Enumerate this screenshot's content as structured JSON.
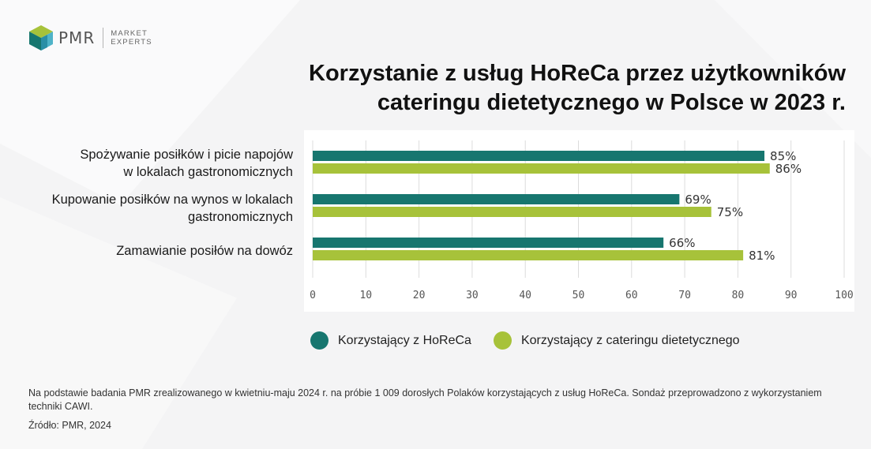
{
  "logo": {
    "name": "PMR",
    "sub1": "MARKET",
    "sub2": "EXPERTS"
  },
  "title": {
    "line1": "Korzystanie z usług HoReCa przez użytkowników",
    "line2": "cateringu dietetycznego w Polsce w 2023 r."
  },
  "colors": {
    "horeca": "#17766f",
    "catering": "#a7c23a",
    "grid": "#dcdcdc",
    "axis_text": "#555555"
  },
  "chart_data": {
    "type": "bar",
    "orientation": "horizontal",
    "title": "Korzystanie z usług HoReCa przez użytkowników cateringu dietetycznego w Polsce w 2023 r.",
    "categories": [
      [
        "Spożywanie posiłków i picie napojów",
        "w lokalach gastronomicznych"
      ],
      [
        "Kupowanie posiłków na wynos w lokalach",
        "gastronomicznych"
      ],
      [
        "Zamawianie posiłów na dowóz"
      ]
    ],
    "series": [
      {
        "name": "Korzystający z HoReCa",
        "values": [
          85,
          69,
          66
        ],
        "labels": [
          "85%",
          "69%",
          "66%"
        ]
      },
      {
        "name": "Korzystający z cateringu dietetycznego",
        "values": [
          86,
          75,
          81
        ],
        "labels": [
          "86%",
          "75%",
          "81%"
        ]
      }
    ],
    "xlim": [
      0,
      100
    ],
    "xticks": [
      0,
      10,
      20,
      30,
      40,
      50,
      60,
      70,
      80,
      90,
      100
    ],
    "grid": true,
    "legend_position": "bottom"
  },
  "note": "Na podstawie badania PMR zrealizowanego w kwietniu-maju 2024 r. na próbie 1 009 dorosłych Polaków korzystających z usług HoReCa. Sondaż przeprowadzono z wykorzystaniem techniki CAWI.",
  "source": "Źródło: PMR, 2024"
}
